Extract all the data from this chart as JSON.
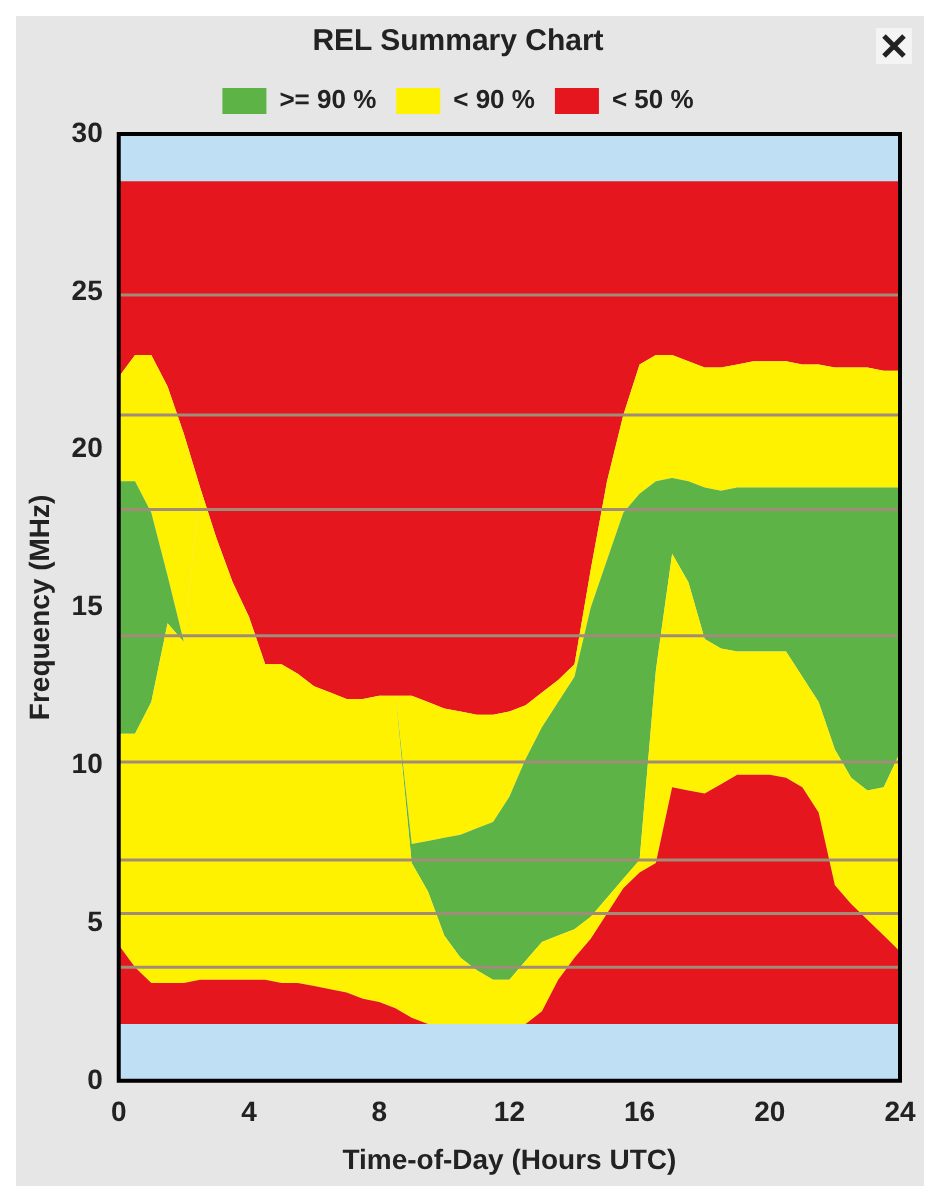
{
  "chart_data": {
    "type": "area",
    "title": "REL Summary Chart",
    "xlabel": "Time-of-Day (Hours UTC)",
    "ylabel": "Frequency (MHz)",
    "x": [
      0,
      0.5,
      1,
      1.5,
      2,
      2.5,
      3,
      3.5,
      4,
      4.5,
      5,
      5.5,
      6,
      6.5,
      7,
      7.5,
      8,
      8.5,
      9,
      9.5,
      10,
      10.5,
      11,
      11.5,
      12,
      12.5,
      13,
      13.5,
      14,
      14.5,
      15,
      15.5,
      16,
      16.5,
      17,
      17.5,
      18,
      18.5,
      19,
      19.5,
      20,
      20.5,
      21,
      21.5,
      22,
      22.5,
      23,
      23.5,
      24
    ],
    "stacked": true,
    "legend": "top",
    "grid": false,
    "xlim": [
      0,
      24
    ],
    "xticks": [
      0,
      4,
      8,
      12,
      16,
      20,
      24
    ],
    "ylim": [
      0,
      30
    ],
    "yticks": [
      0,
      5,
      10,
      15,
      20,
      25,
      30
    ],
    "series": [
      {
        "color": "#bfdff5",
        "values": [
          1.8,
          1.8,
          1.8,
          1.8,
          1.8,
          1.8,
          1.8,
          1.8,
          1.8,
          1.8,
          1.8,
          1.8,
          1.8,
          1.8,
          1.8,
          1.8,
          1.8,
          1.8,
          1.8,
          1.8,
          1.8,
          1.8,
          1.8,
          1.8,
          1.8,
          1.8,
          1.8,
          1.8,
          1.8,
          1.8,
          1.8,
          1.8,
          1.8,
          1.8,
          1.8,
          1.8,
          1.8,
          1.8,
          1.8,
          1.8,
          1.8,
          1.8,
          1.8,
          1.8,
          1.8,
          1.8,
          1.8,
          1.8,
          1.8
        ]
      },
      {
        "name": "< 50 %",
        "color": "#e5161e",
        "values": [
          2.5,
          1.8,
          1.3,
          1.3,
          1.3,
          1.4,
          1.4,
          1.4,
          1.4,
          1.4,
          1.3,
          1.3,
          1.2,
          1.1,
          1.0,
          0.8,
          0.7,
          0.5,
          0.2,
          0,
          0,
          0,
          0,
          0,
          0,
          0,
          0.4,
          1.4,
          2.1,
          2.7,
          3.5,
          4.3,
          4.8,
          5.1,
          7.5,
          7.4,
          7.3,
          7.6,
          7.9,
          7.9,
          7.9,
          7.8,
          7.5,
          6.7,
          4.4,
          3.8,
          3.3,
          2.8,
          2.3
        ]
      },
      {
        "name": "< 90 %",
        "color": "#fff200",
        "values": [
          6.7,
          7.4,
          8.9,
          11.4,
          10.8,
          15.6,
          14.0,
          12.6,
          11.5,
          10.0,
          10.1,
          9.8,
          9.5,
          9.4,
          9.3,
          9.5,
          9.7,
          9.9,
          4.9,
          4.2,
          2.8,
          2.1,
          1.7,
          1.4,
          1.4,
          2.0,
          2.2,
          1.4,
          0.9,
          0.7,
          0.5,
          0.3,
          0.4,
          6.1,
          7.4,
          6.6,
          4.9,
          4.3,
          3.9,
          3.9,
          3.9,
          4.0,
          3.5,
          3.5,
          4.3,
          4.0,
          4.1,
          4.7,
          6.3
        ]
      },
      {
        "name": ">= 90 %",
        "color": "#5db346",
        "values": [
          8.0,
          8.0,
          6.0,
          1.5,
          0,
          0,
          0,
          0,
          0,
          0,
          0,
          0,
          0,
          0,
          0,
          0,
          0,
          0,
          0.6,
          1.6,
          3.1,
          3.9,
          4.5,
          5.0,
          5.8,
          6.4,
          6.8,
          7.4,
          8.0,
          9.8,
          10.7,
          11.6,
          11.6,
          6.0,
          2.4,
          3.2,
          4.8,
          5.0,
          5.2,
          5.2,
          5.2,
          5.2,
          6.0,
          6.8,
          8.3,
          9.2,
          9.6,
          9.5,
          8.4
        ]
      },
      {
        "color": "#fff200",
        "values": [
          3.3,
          4.0,
          5.0,
          6.0,
          6.6,
          0,
          0,
          0,
          0,
          0,
          0,
          0,
          0,
          0,
          0,
          0,
          0,
          0,
          4.7,
          4.4,
          4.1,
          3.9,
          3.6,
          3.4,
          2.7,
          1.7,
          1.1,
          0.7,
          0.4,
          1.2,
          2.5,
          3.1,
          4.1,
          4.0,
          3.9,
          3.8,
          3.8,
          3.9,
          3.9,
          4.0,
          4.0,
          4.0,
          3.9,
          3.9,
          3.8,
          3.8,
          3.8,
          3.7,
          3.7
        ]
      },
      {
        "color": "#e5161e",
        "values": [
          6.2,
          5.5,
          5.5,
          6.5,
          8.0,
          9.7,
          11.3,
          12.7,
          13.8,
          15.3,
          15.3,
          15.6,
          16.0,
          16.2,
          16.4,
          16.4,
          16.3,
          16.3,
          16.3,
          16.5,
          16.7,
          16.8,
          16.9,
          16.9,
          16.8,
          16.6,
          16.2,
          15.8,
          15.3,
          12.3,
          9.5,
          7.4,
          5.8,
          5.5,
          5.5,
          5.7,
          5.9,
          5.9,
          5.8,
          5.7,
          5.7,
          5.7,
          5.8,
          5.8,
          5.9,
          5.9,
          5.9,
          6.0,
          6.0
        ]
      },
      {
        "color": "#bfdff5",
        "values": [
          1.5,
          1.5,
          1.5,
          1.5,
          1.5,
          1.5,
          1.5,
          1.5,
          1.5,
          1.5,
          1.5,
          1.5,
          1.5,
          1.5,
          1.5,
          1.5,
          1.5,
          1.5,
          1.5,
          1.5,
          1.5,
          1.5,
          1.5,
          1.5,
          1.5,
          1.5,
          1.5,
          1.5,
          1.5,
          1.5,
          1.5,
          1.5,
          1.5,
          1.5,
          1.5,
          1.5,
          1.5,
          1.5,
          1.5,
          1.5,
          1.5,
          1.5,
          1.5,
          1.5,
          1.5,
          1.5,
          1.5,
          1.5,
          1.5
        ]
      }
    ],
    "ref_lines": [
      {
        "axis": "y",
        "value": 3.6,
        "color": "#a08c78"
      },
      {
        "axis": "y",
        "value": 5.3,
        "color": "#a08c78"
      },
      {
        "axis": "y",
        "value": 7.0,
        "color": "#a08c78"
      },
      {
        "axis": "y",
        "value": 10.1,
        "color": "#a08c78"
      },
      {
        "axis": "y",
        "value": 14.1,
        "color": "#a08c78"
      },
      {
        "axis": "y",
        "value": 18.1,
        "color": "#a08c78"
      },
      {
        "axis": "y",
        "value": 21.1,
        "color": "#a08c78"
      },
      {
        "axis": "y",
        "value": 24.9,
        "color": "#a08c78"
      }
    ]
  }
}
